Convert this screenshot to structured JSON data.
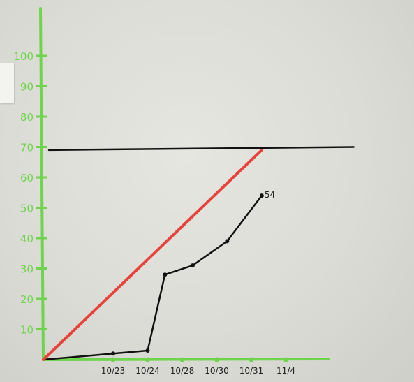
{
  "chart_data": {
    "type": "line",
    "title": "",
    "xlabel": "",
    "ylabel": "",
    "ylim": [
      0,
      100
    ],
    "y_ticks": [
      10,
      20,
      30,
      40,
      50,
      60,
      70,
      80,
      90,
      100
    ],
    "categories": [
      "10/23",
      "10/24",
      "10/28",
      "10/30",
      "10/31",
      "11/4"
    ],
    "grid": false,
    "series": [
      {
        "color": "#111111",
        "style": "line-with-points",
        "points": [
          {
            "x": 0,
            "y": 0
          },
          {
            "x": 1,
            "y": 2
          },
          {
            "x": 2,
            "y": 3
          },
          {
            "x": 2.5,
            "y": 28
          },
          {
            "x": 3.3,
            "y": 31
          },
          {
            "x": 4.3,
            "y": 39
          },
          {
            "x": 5.3,
            "y": 54
          }
        ],
        "end_label": "54"
      },
      {
        "color": "#e8423c",
        "style": "line",
        "points": [
          {
            "x": 0,
            "y": 0
          },
          {
            "x": 5.3,
            "y": 69
          }
        ]
      },
      {
        "color": "#111111",
        "style": "line",
        "points": [
          {
            "x": 0.1,
            "y": 69
          },
          {
            "x": 7.5,
            "y": 70
          }
        ]
      }
    ],
    "colors": {
      "axis": "#6fd34e",
      "goal_line": "#111111",
      "trend_line": "#e8423c",
      "progress_line": "#111111"
    }
  }
}
